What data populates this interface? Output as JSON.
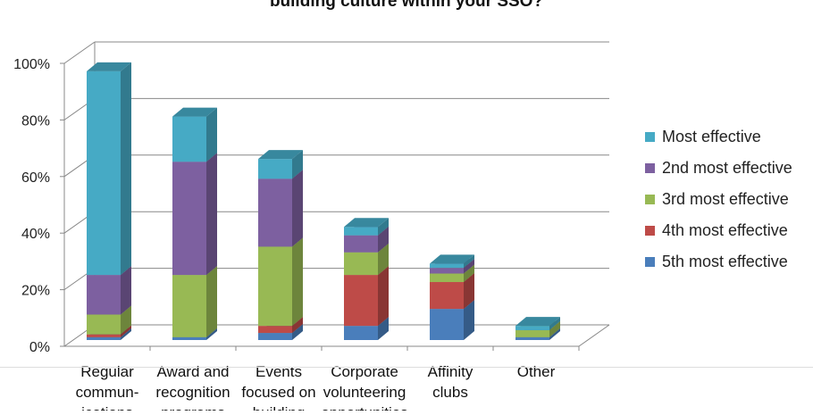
{
  "chart_data": {
    "type": "bar",
    "stacked": true,
    "title": "building culture within your SSO?",
    "categories": [
      [
        "Regular",
        "commun-",
        "ications"
      ],
      [
        "Award and",
        "recognition",
        "programs"
      ],
      [
        "Events",
        "focused on",
        "building"
      ],
      [
        "Corporate",
        "volunteering",
        "opportunities"
      ],
      [
        "Affinity",
        "clubs"
      ],
      [
        "Other"
      ]
    ],
    "series": [
      {
        "name": "5th most effective",
        "color": "#4a7ebb",
        "values": [
          1,
          1,
          2.5,
          5,
          11,
          1
        ]
      },
      {
        "name": "4th most effective",
        "color": "#be4b48",
        "values": [
          1,
          0,
          2.5,
          18,
          9.5,
          0
        ]
      },
      {
        "name": "3rd most effective",
        "color": "#98b954",
        "values": [
          7,
          22,
          28,
          8,
          3,
          2.5
        ]
      },
      {
        "name": "2nd most effective",
        "color": "#7d60a0",
        "values": [
          14,
          40,
          24,
          6,
          2,
          0
        ]
      },
      {
        "name": "Most effective",
        "color": "#46aac5",
        "values": [
          72,
          16,
          7,
          3,
          1.5,
          1.5
        ]
      }
    ],
    "yticks": [
      "0%",
      "20%",
      "40%",
      "60%",
      "80%",
      "100%"
    ],
    "ylim": [
      0,
      100
    ],
    "legend_position": "right",
    "grid": true
  }
}
